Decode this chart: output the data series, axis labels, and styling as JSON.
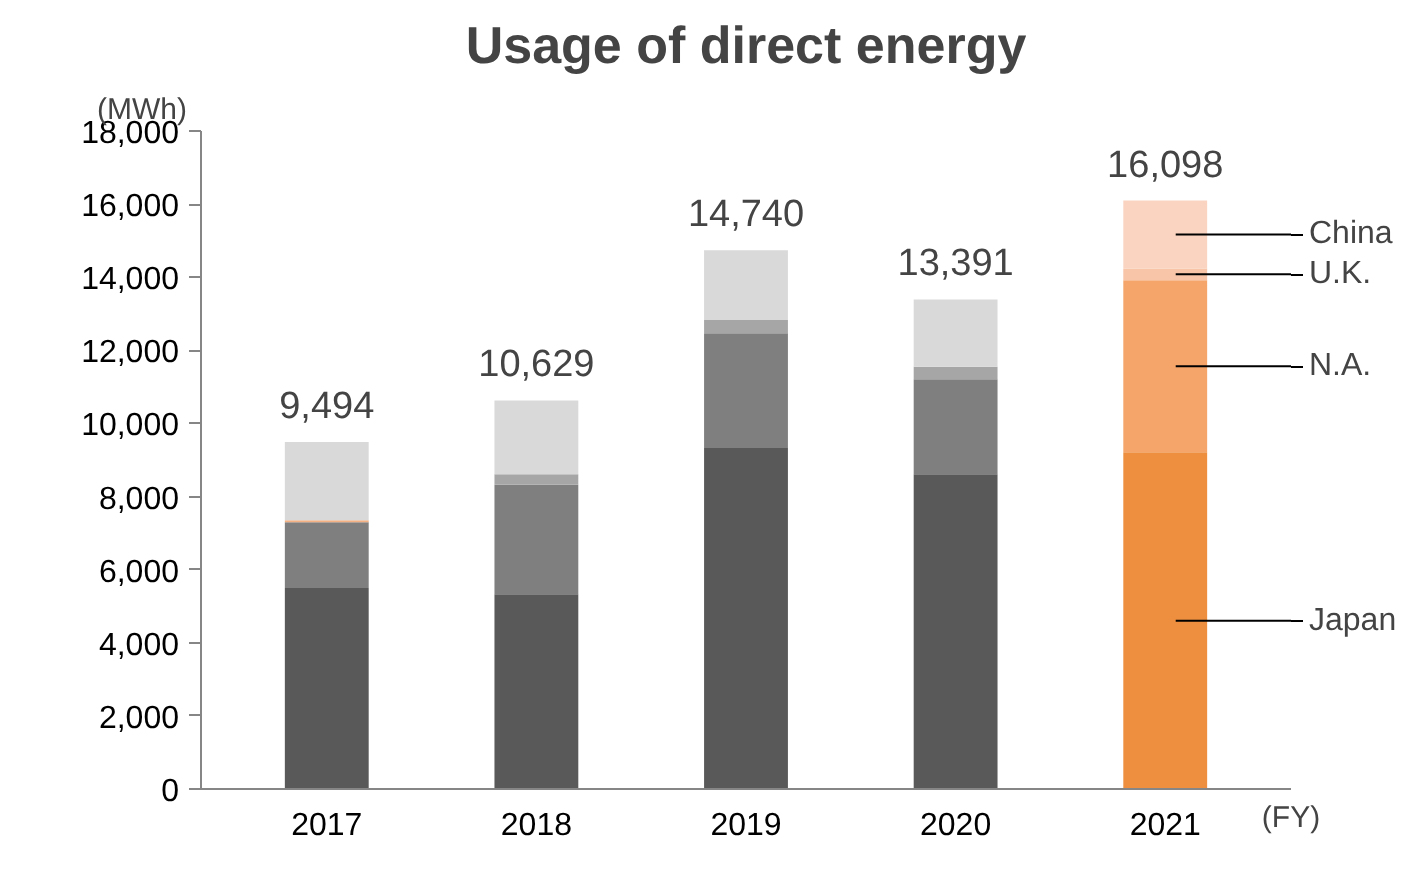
{
  "chart_data": {
    "type": "bar",
    "title": "Usage of direct energy",
    "xlabel": "(FY)",
    "ylabel": "(MWh)",
    "categories": [
      "2017",
      "2018",
      "2019",
      "2020",
      "2021"
    ],
    "stacked": true,
    "series": [
      {
        "name": "Japan",
        "colors": [
          "#595959",
          "#595959",
          "#595959",
          "#595959",
          "#ed8f3f"
        ],
        "values": [
          5500,
          5330,
          9330,
          8610,
          9210
        ]
      },
      {
        "name": "N.A.",
        "colors": [
          "#7f7f7f",
          "#7f7f7f",
          "#7f7f7f",
          "#7f7f7f",
          "#f5a56a"
        ],
        "values": [
          1800,
          2990,
          3140,
          2600,
          4710
        ]
      },
      {
        "name": "U.K.",
        "colors": [
          "#f4b183",
          "#a6a6a6",
          "#a6a6a6",
          "#a6a6a6",
          "#f8c5a8"
        ],
        "values": [
          50,
          290,
          360,
          340,
          320
        ]
      },
      {
        "name": "China",
        "colors": [
          "#d9d9d9",
          "#d9d9d9",
          "#d9d9d9",
          "#d9d9d9",
          "#fad4c0"
        ],
        "values": [
          2144,
          2019,
          1910,
          1841,
          1858
        ]
      }
    ],
    "totals": [
      "9,494",
      "10,629",
      "14,740",
      "13,391",
      "16,098"
    ],
    "ylim": [
      0,
      18000
    ],
    "yticks": [
      {
        "value": 0,
        "label": "0"
      },
      {
        "value": 2000,
        "label": "2,000"
      },
      {
        "value": 4000,
        "label": "4,000"
      },
      {
        "value": 6000,
        "label": "6,000"
      },
      {
        "value": 8000,
        "label": "8,000"
      },
      {
        "value": 10000,
        "label": "10,000"
      },
      {
        "value": 12000,
        "label": "12,000"
      },
      {
        "value": 14000,
        "label": "14,000"
      },
      {
        "value": 16000,
        "label": "16,000"
      },
      {
        "value": 18000,
        "label": "18,000"
      }
    ],
    "grid": false
  }
}
